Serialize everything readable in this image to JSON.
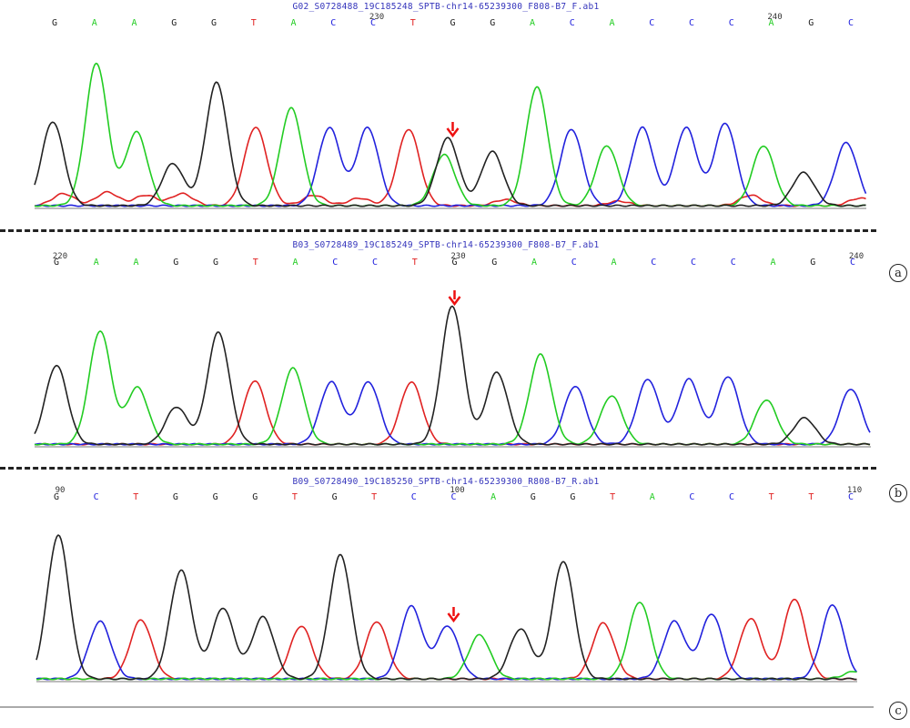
{
  "colors": {
    "A": "#22cc22",
    "C": "#2222dd",
    "G": "#222222",
    "T": "#e02222",
    "arrow": "#ee1111"
  },
  "chart_data": [
    {
      "type": "line",
      "panel_label": "a",
      "filename": "G02_S0728488_19C185248_SPTB-chr14-65239300_F808-B7_F.ab1",
      "bases": [
        "G",
        "A",
        "A",
        "G",
        "G",
        "T",
        "A",
        "C",
        "C",
        "T",
        "G",
        "G",
        "A",
        "C",
        "A",
        "C",
        "C",
        "C",
        "A",
        "G",
        "C"
      ],
      "position_labels": [
        {
          "index": 8,
          "text": "230"
        },
        {
          "index": 18,
          "text": "240"
        }
      ],
      "arrow_index": 10,
      "peaks": [
        {
          "x": 58,
          "h": 0.56,
          "b": "G"
        },
        {
          "x": 106,
          "h": 0.95,
          "b": "A"
        },
        {
          "x": 150,
          "h": 0.49,
          "b": "A"
        },
        {
          "x": 190,
          "h": 0.28,
          "b": "G"
        },
        {
          "x": 238,
          "h": 0.82,
          "b": "G"
        },
        {
          "x": 280,
          "h": 0.48,
          "b": "T"
        },
        {
          "x": 320,
          "h": 0.65,
          "b": "A"
        },
        {
          "x": 362,
          "h": 0.52,
          "b": "C"
        },
        {
          "x": 404,
          "h": 0.52,
          "b": "C"
        },
        {
          "x": 449,
          "h": 0.51,
          "b": "T"
        },
        {
          "x": 492,
          "h": 0.45,
          "b": "G"
        },
        {
          "x": 488,
          "h": 0.34,
          "b": "A"
        },
        {
          "x": 541,
          "h": 0.36,
          "b": "G"
        },
        {
          "x": 590,
          "h": 0.79,
          "b": "A"
        },
        {
          "x": 628,
          "h": 0.51,
          "b": "C"
        },
        {
          "x": 667,
          "h": 0.4,
          "b": "A"
        },
        {
          "x": 706,
          "h": 0.52,
          "b": "C"
        },
        {
          "x": 754,
          "h": 0.52,
          "b": "C"
        },
        {
          "x": 797,
          "h": 0.55,
          "b": "C"
        },
        {
          "x": 839,
          "h": 0.4,
          "b": "A"
        },
        {
          "x": 883,
          "h": 0.22,
          "b": "G"
        },
        {
          "x": 930,
          "h": 0.42,
          "b": "C"
        },
        {
          "x": 70,
          "h": 0.08,
          "b": "T"
        },
        {
          "x": 118,
          "h": 0.09,
          "b": "T"
        },
        {
          "x": 160,
          "h": 0.07,
          "b": "T"
        },
        {
          "x": 200,
          "h": 0.08,
          "b": "T"
        },
        {
          "x": 290,
          "h": 0.06,
          "b": "T"
        },
        {
          "x": 345,
          "h": 0.07,
          "b": "T"
        },
        {
          "x": 395,
          "h": 0.05,
          "b": "T"
        },
        {
          "x": 555,
          "h": 0.04,
          "b": "T"
        },
        {
          "x": 680,
          "h": 0.03,
          "b": "T"
        },
        {
          "x": 825,
          "h": 0.07,
          "b": "T"
        },
        {
          "x": 945,
          "h": 0.05,
          "b": "T"
        }
      ]
    },
    {
      "type": "line",
      "panel_label": "b",
      "filename": "B03_S0728489_19C185249_SPTB-chr14-65239300_F808-B7_F.ab1",
      "bases": [
        "G",
        "A",
        "A",
        "G",
        "G",
        "T",
        "A",
        "C",
        "C",
        "T",
        "G",
        "G",
        "A",
        "C",
        "A",
        "C",
        "C",
        "C",
        "A",
        "G",
        "C"
      ],
      "position_labels": [
        {
          "index": 0,
          "text": "220"
        },
        {
          "index": 10,
          "text": "230"
        },
        {
          "index": 20,
          "text": "240"
        }
      ],
      "arrow_index": 10,
      "peaks": [
        {
          "x": 62,
          "h": 0.57,
          "b": "G"
        },
        {
          "x": 110,
          "h": 0.82,
          "b": "A"
        },
        {
          "x": 151,
          "h": 0.41,
          "b": "A"
        },
        {
          "x": 194,
          "h": 0.27,
          "b": "G"
        },
        {
          "x": 240,
          "h": 0.81,
          "b": "G"
        },
        {
          "x": 280,
          "h": 0.46,
          "b": "T"
        },
        {
          "x": 322,
          "h": 0.55,
          "b": "A"
        },
        {
          "x": 364,
          "h": 0.45,
          "b": "C"
        },
        {
          "x": 405,
          "h": 0.45,
          "b": "C"
        },
        {
          "x": 452,
          "h": 0.45,
          "b": "T"
        },
        {
          "x": 497,
          "h": 1.0,
          "b": "G"
        },
        {
          "x": 546,
          "h": 0.52,
          "b": "G"
        },
        {
          "x": 594,
          "h": 0.65,
          "b": "A"
        },
        {
          "x": 632,
          "h": 0.42,
          "b": "C"
        },
        {
          "x": 672,
          "h": 0.35,
          "b": "A"
        },
        {
          "x": 712,
          "h": 0.47,
          "b": "C"
        },
        {
          "x": 757,
          "h": 0.47,
          "b": "C"
        },
        {
          "x": 800,
          "h": 0.49,
          "b": "C"
        },
        {
          "x": 842,
          "h": 0.32,
          "b": "A"
        },
        {
          "x": 884,
          "h": 0.19,
          "b": "G"
        },
        {
          "x": 935,
          "h": 0.4,
          "b": "C"
        }
      ]
    },
    {
      "type": "line",
      "panel_label": "c",
      "filename": "B09_S0728490_19C185250_SPTB-chr14-65239300_R808-B7_R.ab1",
      "bases": [
        "G",
        "C",
        "T",
        "G",
        "G",
        "G",
        "T",
        "G",
        "T",
        "C",
        "C",
        "A",
        "G",
        "G",
        "T",
        "A",
        "C",
        "C",
        "T",
        "T",
        "C"
      ],
      "position_labels": [
        {
          "index": 0,
          "text": "90"
        },
        {
          "index": 10,
          "text": "100"
        },
        {
          "index": 20,
          "text": "110"
        }
      ],
      "arrow_index": 10,
      "peaks": [
        {
          "x": 64,
          "h": 0.95,
          "b": "G"
        },
        {
          "x": 110,
          "h": 0.38,
          "b": "C"
        },
        {
          "x": 155,
          "h": 0.39,
          "b": "T"
        },
        {
          "x": 199,
          "h": 0.72,
          "b": "G"
        },
        {
          "x": 245,
          "h": 0.47,
          "b": "G"
        },
        {
          "x": 289,
          "h": 0.41,
          "b": "G"
        },
        {
          "x": 331,
          "h": 0.35,
          "b": "T"
        },
        {
          "x": 374,
          "h": 0.82,
          "b": "G"
        },
        {
          "x": 414,
          "h": 0.38,
          "b": "T"
        },
        {
          "x": 452,
          "h": 0.48,
          "b": "C"
        },
        {
          "x": 492,
          "h": 0.35,
          "b": "C"
        },
        {
          "x": 527,
          "h": 0.29,
          "b": "A"
        },
        {
          "x": 572,
          "h": 0.33,
          "b": "G"
        },
        {
          "x": 619,
          "h": 0.78,
          "b": "G"
        },
        {
          "x": 663,
          "h": 0.37,
          "b": "T"
        },
        {
          "x": 703,
          "h": 0.51,
          "b": "A"
        },
        {
          "x": 741,
          "h": 0.38,
          "b": "C"
        },
        {
          "x": 782,
          "h": 0.43,
          "b": "C"
        },
        {
          "x": 825,
          "h": 0.4,
          "b": "T"
        },
        {
          "x": 873,
          "h": 0.53,
          "b": "T"
        },
        {
          "x": 915,
          "h": 0.49,
          "b": "C"
        },
        {
          "x": 940,
          "h": 0.05,
          "b": "A"
        }
      ]
    }
  ]
}
